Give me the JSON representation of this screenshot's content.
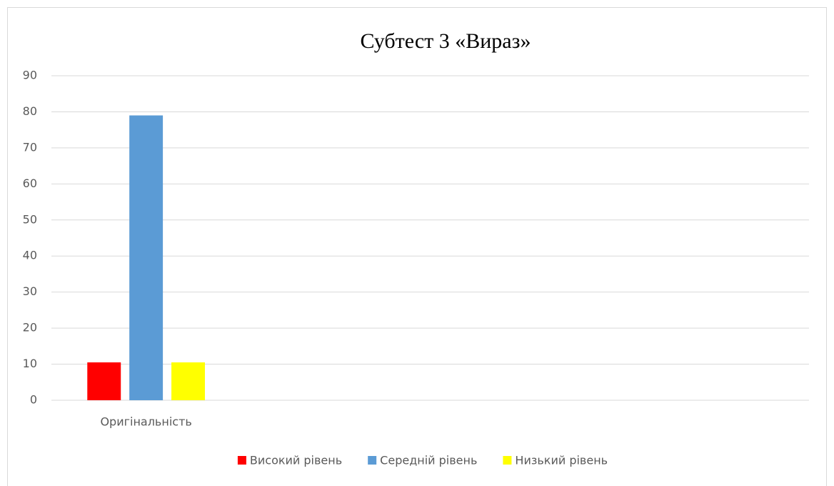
{
  "chart_data": {
    "type": "bar",
    "title": "Субтест 3 «Вираз»",
    "categories": [
      "Оригінальність",
      null,
      null,
      null
    ],
    "series": [
      {
        "name": "Високий рівень",
        "color": "#ff0000",
        "values": [
          10.5,
          null,
          null,
          null
        ]
      },
      {
        "name": "Середній рівень",
        "color": "#5b9bd5",
        "values": [
          79,
          null,
          null,
          null
        ]
      },
      {
        "name": "Низький рівень",
        "color": "#ffff00",
        "values": [
          10.5,
          null,
          null,
          null
        ]
      }
    ],
    "ylim": [
      0,
      90
    ],
    "yticks": [
      0,
      10,
      20,
      30,
      40,
      50,
      60,
      70,
      80,
      90
    ],
    "grid": true,
    "legend": "bottom"
  }
}
